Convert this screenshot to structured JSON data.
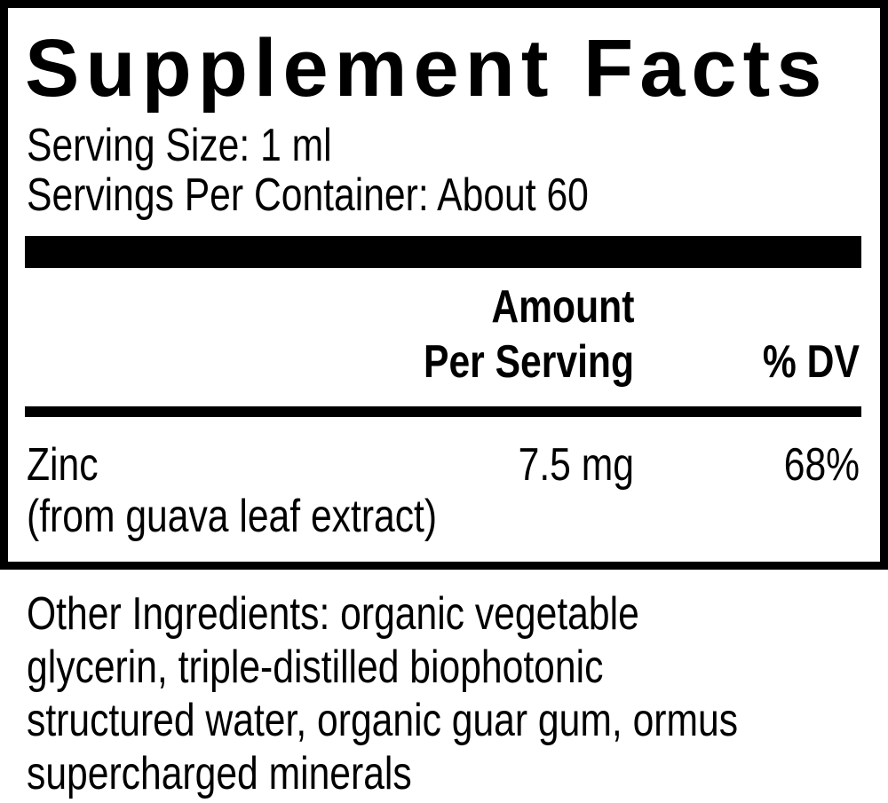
{
  "title": "Supplement Facts",
  "serving_size": "Serving Size: 1 ml",
  "servings_per_container": "Servings Per Container: About 60",
  "header": {
    "amount_line1": "Amount",
    "amount_line2": "Per Serving",
    "dv": "% DV"
  },
  "rows": [
    {
      "name": "Zinc",
      "source": "(from guava leaf extract)",
      "amount": "7.5 mg",
      "dv": "68%"
    }
  ],
  "other_ingredients": [
    "Other Ingredients: organic vegetable",
    "glycerin, triple-distilled biophotonic",
    "structured water, organic guar gum, ormus",
    "supercharged minerals"
  ]
}
